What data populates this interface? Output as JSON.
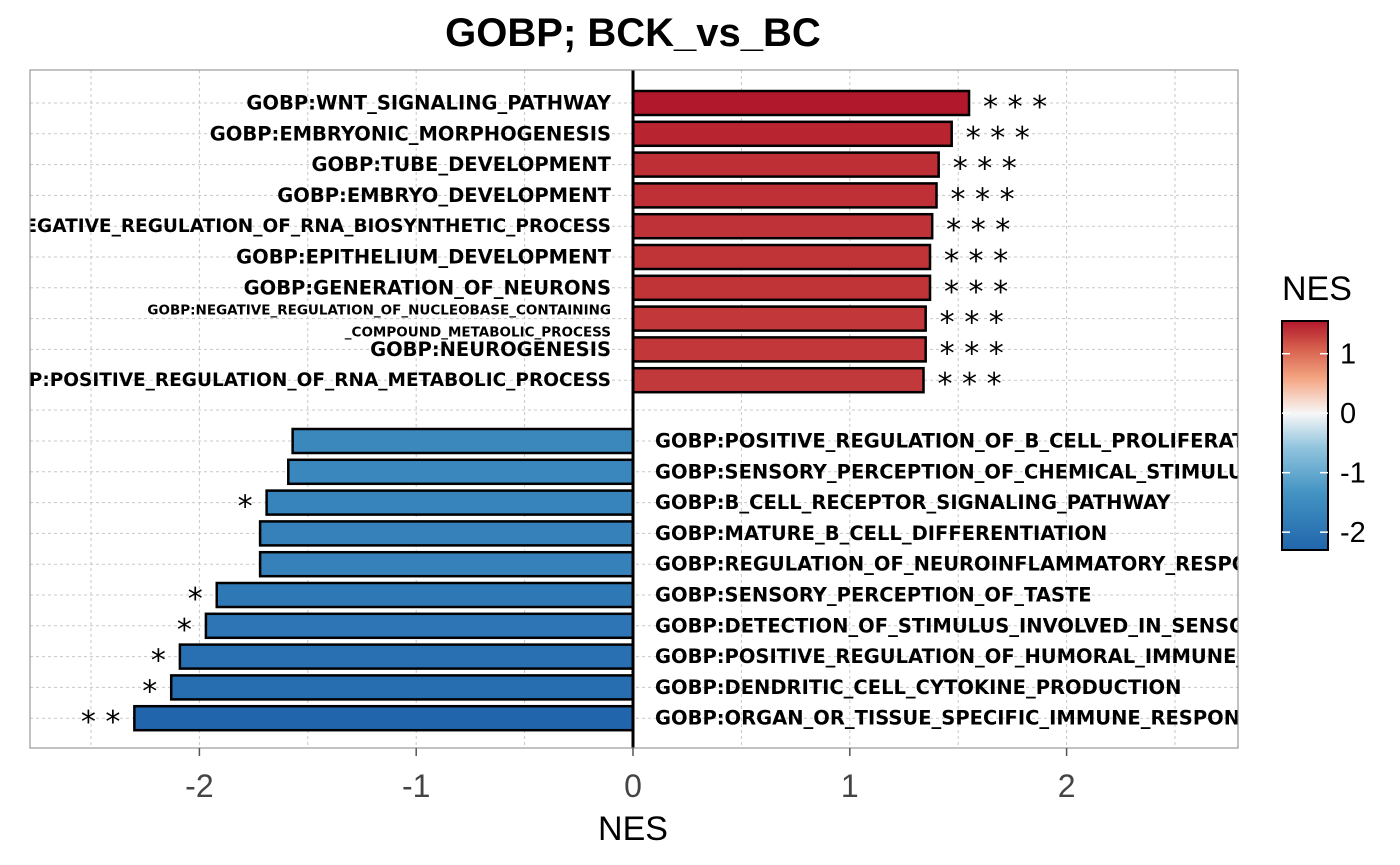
{
  "chart_data": {
    "type": "bar",
    "orientation": "horizontal",
    "title": "GOBP; BCK_vs_BC",
    "xlabel": "NES",
    "xlim": [
      -2.8,
      2.8
    ],
    "xticks": [
      -2,
      -1,
      0,
      1,
      2
    ],
    "grid": true,
    "bars": [
      {
        "label": "GOBP:WNT_SIGNALING_PATHWAY",
        "value": 1.55,
        "sig": "***"
      },
      {
        "label": "GOBP:EMBRYONIC_MORPHOGENESIS",
        "value": 1.47,
        "sig": "***"
      },
      {
        "label": "GOBP:TUBE_DEVELOPMENT",
        "value": 1.41,
        "sig": "***"
      },
      {
        "label": "GOBP:EMBRYO_DEVELOPMENT",
        "value": 1.4,
        "sig": "***"
      },
      {
        "label": "GOBP:NEGATIVE_REGULATION_OF_RNA_BIOSYNTHETIC_PROCESS",
        "value": 1.38,
        "sig": "***"
      },
      {
        "label": "GOBP:EPITHELIUM_DEVELOPMENT",
        "value": 1.37,
        "sig": "***"
      },
      {
        "label": "GOBP:GENERATION_OF_NEURONS",
        "value": 1.37,
        "sig": "***"
      },
      {
        "label": "GOBP:NEGATIVE_REGULATION_OF_NUCLEOBASE_CONTAINING_COMPOUND_METABOLIC_PROCESS",
        "value": 1.35,
        "sig": "***"
      },
      {
        "label": "GOBP:NEUROGENESIS",
        "value": 1.35,
        "sig": "***"
      },
      {
        "label": "GOBP:POSITIVE_REGULATION_OF_RNA_METABOLIC_PROCESS",
        "value": 1.34,
        "sig": "***"
      },
      {
        "label": "GOBP:POSITIVE_REGULATION_OF_B_CELL_PROLIFERATION",
        "value": -1.57,
        "sig": ""
      },
      {
        "label": "GOBP:SENSORY_PERCEPTION_OF_CHEMICAL_STIMULUS",
        "value": -1.59,
        "sig": ""
      },
      {
        "label": "GOBP:B_CELL_RECEPTOR_SIGNALING_PATHWAY",
        "value": -1.69,
        "sig": "*"
      },
      {
        "label": "GOBP:MATURE_B_CELL_DIFFERENTIATION",
        "value": -1.72,
        "sig": ""
      },
      {
        "label": "GOBP:REGULATION_OF_NEUROINFLAMMATORY_RESPONSE",
        "value": -1.72,
        "sig": ""
      },
      {
        "label": "GOBP:SENSORY_PERCEPTION_OF_TASTE",
        "value": -1.92,
        "sig": "*"
      },
      {
        "label": "GOBP:DETECTION_OF_STIMULUS_INVOLVED_IN_SENSORY_PERCEPTION",
        "value": -1.97,
        "sig": "*"
      },
      {
        "label": "GOBP:POSITIVE_REGULATION_OF_HUMORAL_IMMUNE_RESPONSE",
        "value": -2.09,
        "sig": "*"
      },
      {
        "label": "GOBP:DENDRITIC_CELL_CYTOKINE_PRODUCTION",
        "value": -2.13,
        "sig": "*"
      },
      {
        "label": "GOBP:ORGAN_OR_TISSUE_SPECIFIC_IMMUNE_RESPONSE",
        "value": -2.3,
        "sig": "**"
      }
    ],
    "legend": {
      "title": "NES",
      "position": "right",
      "ticks": [
        1,
        0,
        -1,
        -2
      ],
      "range": [
        -2.3,
        1.55
      ]
    },
    "colors": {
      "high": "#b2182b",
      "mid": "#f7f7f7",
      "low": "#2166ac"
    }
  }
}
